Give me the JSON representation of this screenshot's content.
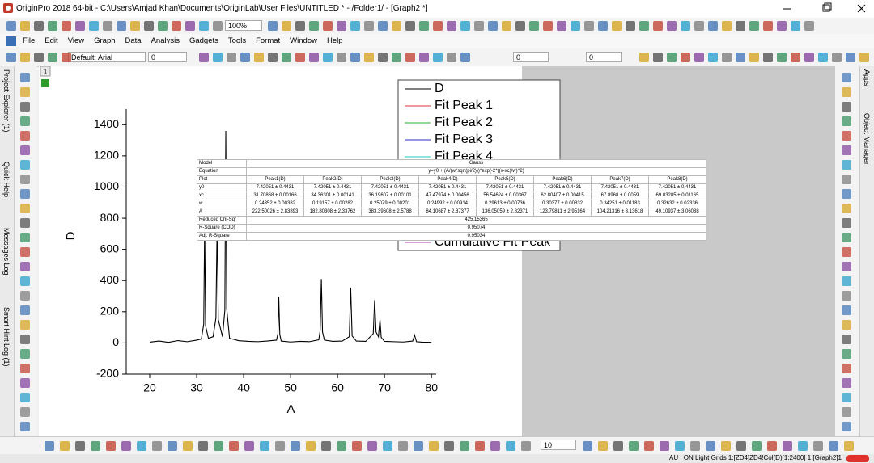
{
  "window": {
    "title": "OriginPro 2018 64-bit - C:\\Users\\Amjad Khan\\Documents\\OriginLab\\User Files\\UNTITLED * - /Folder1/ - [Graph2 *]",
    "menu": [
      "File",
      "Edit",
      "View",
      "Graph",
      "Data",
      "Analysis",
      "Gadgets",
      "Tools",
      "Format",
      "Window",
      "Help"
    ],
    "toolbar": {
      "zoom": "100%",
      "font": "Default: Arial",
      "font_size": "0",
      "line_size": "0",
      "fill_size": "0"
    },
    "left_tabs": [
      "Project Explorer (1)",
      "Quick Help",
      "Messages Log",
      "Smart Hint Log (1)"
    ],
    "right_tabs": [
      "Apps",
      "Object Manager"
    ],
    "layer": "1",
    "bottom_zoom": "10",
    "status": "AU : ON  Light Grids  1:[ZD4]ZD4!Col(D)[1:2400]  1:[Graph2]1"
  },
  "chart_data": {
    "type": "line",
    "x_label": "A",
    "y_label": "D",
    "xlim": [
      15,
      81
    ],
    "ylim": [
      -200,
      1500
    ],
    "xticks": [
      20,
      30,
      40,
      50,
      60,
      70,
      80
    ],
    "yticks": [
      -200,
      0,
      200,
      400,
      600,
      800,
      1000,
      1200,
      1400
    ],
    "x": [
      20,
      22,
      24,
      26,
      28,
      30,
      31,
      31.5,
      31.7,
      31.9,
      32.5,
      33.5,
      34.1,
      34.36,
      34.6,
      35.5,
      36.0,
      36.2,
      36.4,
      37,
      39,
      41,
      43,
      45,
      47,
      47.3,
      47.48,
      47.7,
      48,
      50,
      52,
      54,
      56,
      56.3,
      56.55,
      56.8,
      57.2,
      59,
      61,
      62.5,
      62.8,
      63.1,
      64,
      66,
      67.6,
      67.9,
      68.2,
      68.7,
      69.03,
      69.3,
      70,
      72,
      74,
      76,
      76.4,
      76.8,
      78,
      80
    ],
    "series": [
      {
        "name": "D",
        "color": "#000000",
        "values": [
          5,
          12,
          4,
          15,
          8,
          18,
          25,
          120,
          760,
          110,
          30,
          40,
          160,
          780,
          150,
          40,
          210,
          1360,
          220,
          30,
          14,
          10,
          8,
          12,
          18,
          60,
          295,
          55,
          12,
          6,
          10,
          8,
          20,
          80,
          410,
          70,
          18,
          10,
          12,
          40,
          355,
          45,
          12,
          10,
          60,
          275,
          70,
          40,
          150,
          35,
          10,
          8,
          6,
          12,
          50,
          8,
          5,
          4
        ]
      }
    ],
    "legend": [
      {
        "name": "D",
        "color": "#000000"
      },
      {
        "name": "Fit Peak 1",
        "color": "#e0323c"
      },
      {
        "name": "Fit Peak 2",
        "color": "#2bb32b"
      },
      {
        "name": "Fit Peak 3",
        "color": "#2b2bbf"
      },
      {
        "name": "Fit Peak 4",
        "color": "#20c8c8"
      },
      {
        "name": "Cumulative Fit Peak",
        "color": "#b040b0"
      }
    ]
  },
  "fit_table": {
    "model_label": "Model",
    "model": "Gauss",
    "equation_label": "Equation",
    "equation": "y=y0 + (A/(w*sqrt(pi/2)))*exp(-2*((x-xc)/w)^2)",
    "plot_label": "Plot",
    "columns": [
      "Peak1(D)",
      "Peak2(D)",
      "Peak3(D)",
      "Peak4(D)",
      "Peak5(D)",
      "Peak6(D)",
      "Peak7(D)",
      "Peak8(D)"
    ],
    "rows": [
      {
        "label": "y0",
        "values": [
          "7.42051 ± 0.4431",
          "7.42051 ± 0.4431",
          "7.42051 ± 0.4431",
          "7.42051 ± 0.4431",
          "7.42051 ± 0.4431",
          "7.42051 ± 0.4431",
          "7.42051 ± 0.4431",
          "7.42051 ± 0.4431"
        ]
      },
      {
        "label": "xc",
        "values": [
          "31.70868 ± 0.00166",
          "34.36301 ± 0.00141",
          "36.19607 ± 0.00101",
          "47.47974 ± 0.00456",
          "56.54624 ± 0.00367",
          "62.80407 ± 0.00415",
          "67.8968 ± 0.0059",
          "69.03285 ± 0.01165"
        ]
      },
      {
        "label": "w",
        "values": [
          "0.24352 ± 0.00382",
          "0.19157 ± 0.00282",
          "0.25079 ± 0.00201",
          "0.24992 ± 0.00914",
          "0.29613 ± 0.00736",
          "0.30377 ± 0.00832",
          "0.34251 ± 0.01183",
          "0.32632 ± 0.02336"
        ]
      },
      {
        "label": "A",
        "values": [
          "222.50026 ± 2.83893",
          "182.80308 ± 2.33762",
          "383.39608 ± 2.5788",
          "84.10687 ± 2.87377",
          "136.05059 ± 2.82371",
          "123.79811 ± 2.95164",
          "104.21316 ± 3.13618",
          "49.10937 ± 3.06088"
        ]
      }
    ],
    "summary": [
      {
        "label": "Reduced Chi-Sqr",
        "value": 425.15365
      },
      {
        "label": "R-Square (COD)",
        "value": 0.95074
      },
      {
        "label": "Adj. R-Square",
        "value": 0.95034
      }
    ]
  }
}
